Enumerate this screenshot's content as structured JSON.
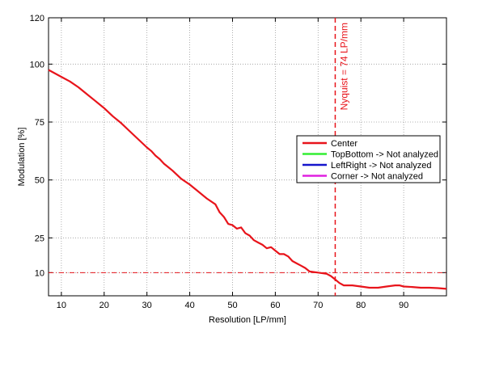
{
  "chart_data": {
    "type": "line",
    "xlabel": "Resolution [LP/mm]",
    "ylabel": "Modulation [%]",
    "xlim": [
      7,
      100
    ],
    "ylim": [
      0,
      120
    ],
    "x_ticks": [
      10,
      20,
      30,
      40,
      50,
      60,
      70,
      80,
      90
    ],
    "y_ticks": [
      10,
      25,
      50,
      75,
      100,
      120
    ],
    "grid": true,
    "legend_position": "right",
    "colors": {
      "center": "#e8141b",
      "top_bottom": "#33ee33",
      "left_right": "#1515cc",
      "corner": "#e020e0",
      "reference": "#e8141b"
    },
    "series": [
      {
        "name": "Center",
        "x": [
          7,
          8,
          10,
          12,
          14,
          16,
          18,
          20,
          22,
          24,
          26,
          28,
          30,
          31,
          32,
          33,
          34,
          35,
          36,
          38,
          40,
          42,
          44,
          46,
          47,
          48,
          49,
          50,
          51,
          52,
          53,
          54,
          55,
          56,
          57,
          58,
          59,
          60,
          61,
          62,
          63,
          64,
          65,
          66,
          67,
          68,
          70,
          72,
          73,
          74,
          75,
          76,
          78,
          80,
          82,
          84,
          86,
          88,
          89,
          90,
          92,
          94,
          96,
          98,
          100
        ],
        "y": [
          97.5,
          96.5,
          94.5,
          92.5,
          90,
          87,
          84,
          81,
          77.5,
          74.5,
          71,
          67.5,
          64,
          62.5,
          60.5,
          59,
          57,
          55.5,
          54,
          50.5,
          48,
          45,
          42,
          39.5,
          36,
          34,
          31,
          30.5,
          29,
          29.5,
          27,
          26,
          24,
          23,
          22,
          20.5,
          21,
          19.5,
          18,
          18,
          17,
          15,
          14,
          13,
          12,
          10.5,
          10,
          9.5,
          8.5,
          7,
          5.5,
          4.5,
          4.5,
          4,
          3.5,
          3.5,
          4,
          4.5,
          4.5,
          4,
          3.8,
          3.5,
          3.5,
          3.3,
          3
        ]
      },
      {
        "name": "TopBottom -> Not analyzed",
        "x": [],
        "y": []
      },
      {
        "name": "LeftRight -> Not analyzed",
        "x": [],
        "y": []
      },
      {
        "name": "Corner -> Not analyzed",
        "x": [],
        "y": []
      }
    ],
    "reference_lines": {
      "horizontal_value": 10,
      "vertical_value": 74,
      "vertical_label": "Nyquist = 74 LP/mm"
    }
  }
}
